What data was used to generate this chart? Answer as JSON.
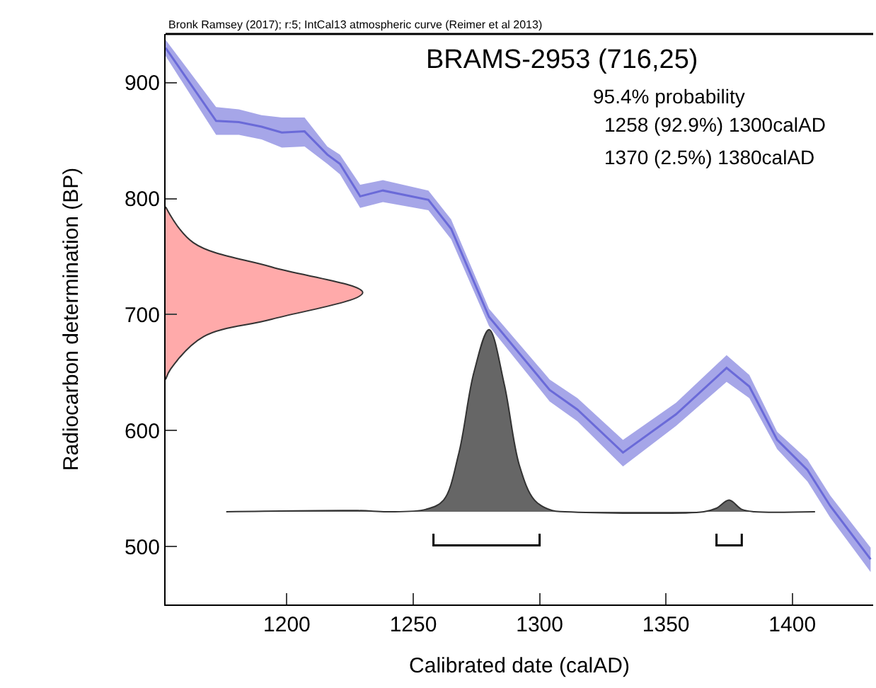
{
  "chart_data": {
    "type": "line",
    "title": "BRAMS-2953 (716,25)",
    "subtitle": "95.4% probability",
    "xlabel": "Calibrated date (calAD)",
    "ylabel": "Radiocarbon determination (BP)",
    "annotations": [
      "1258 (92.9%) 1300calAD",
      "1370 (2.5%) 1380calAD",
      "Bronk Ramsey (2017); r:5; IntCal13 atmospheric curve (Reimer et al 2013)"
    ],
    "xlim": [
      1152,
      1432
    ],
    "ylim": [
      450,
      942
    ],
    "xticks": [
      1200,
      1250,
      1300,
      1350,
      1400
    ],
    "yticks": [
      500,
      600,
      700,
      800,
      900
    ],
    "series": [
      {
        "color": "#6a6ad8",
        "x": [
          1152,
          1172,
          1181,
          1190,
          1198,
          1207,
          1216,
          1221,
          1229,
          1238,
          1256,
          1265,
          1280,
          1304,
          1315,
          1333,
          1354,
          1374,
          1383,
          1394,
          1406,
          1415,
          1431
        ],
        "values": [
          930,
          867,
          866,
          862,
          857,
          858,
          838,
          830,
          802,
          807,
          799,
          774,
          698,
          635,
          618,
          581,
          614,
          654,
          638,
          592,
          566,
          535,
          489
        ],
        "lower": [
          923,
          855,
          855,
          851,
          844,
          845,
          830,
          821,
          792,
          797,
          790,
          765,
          690,
          625,
          608,
          569,
          604,
          642,
          628,
          584,
          556,
          525,
          478
        ],
        "upper": [
          937,
          879,
          877,
          872,
          870,
          870,
          845,
          838,
          812,
          816,
          807,
          782,
          705,
          644,
          628,
          592,
          624,
          665,
          648,
          599,
          575,
          544,
          499
        ]
      },
      {
        "type": "area",
        "color": "#ffaaaa",
        "x": [
          1152,
          1163,
          1194,
          1230,
          1194,
          1167,
          1154,
          1152
        ],
        "values": [
          793,
          762,
          741,
          719,
          696,
          681,
          653,
          644
        ]
      },
      {
        "type": "area",
        "color": "#666666",
        "x": [
          1176,
          1228,
          1240,
          1255,
          1262,
          1268,
          1274,
          1280,
          1286,
          1292,
          1298,
          1305,
          1310,
          1365,
          1370,
          1375,
          1380,
          1385,
          1409
        ],
        "values": [
          530,
          531,
          530,
          532,
          540,
          580,
          650,
          687,
          640,
          570,
          540,
          531,
          530,
          530,
          533,
          540,
          532,
          530,
          530
        ]
      },
      {
        "color": "#000000",
        "x": [
          1258,
          1258,
          1300,
          1300
        ],
        "values": [
          511,
          501,
          501,
          511
        ]
      },
      {
        "color": "#000000",
        "x": [
          1370,
          1370,
          1380,
          1380
        ],
        "values": [
          511,
          501,
          501,
          511
        ]
      }
    ]
  }
}
